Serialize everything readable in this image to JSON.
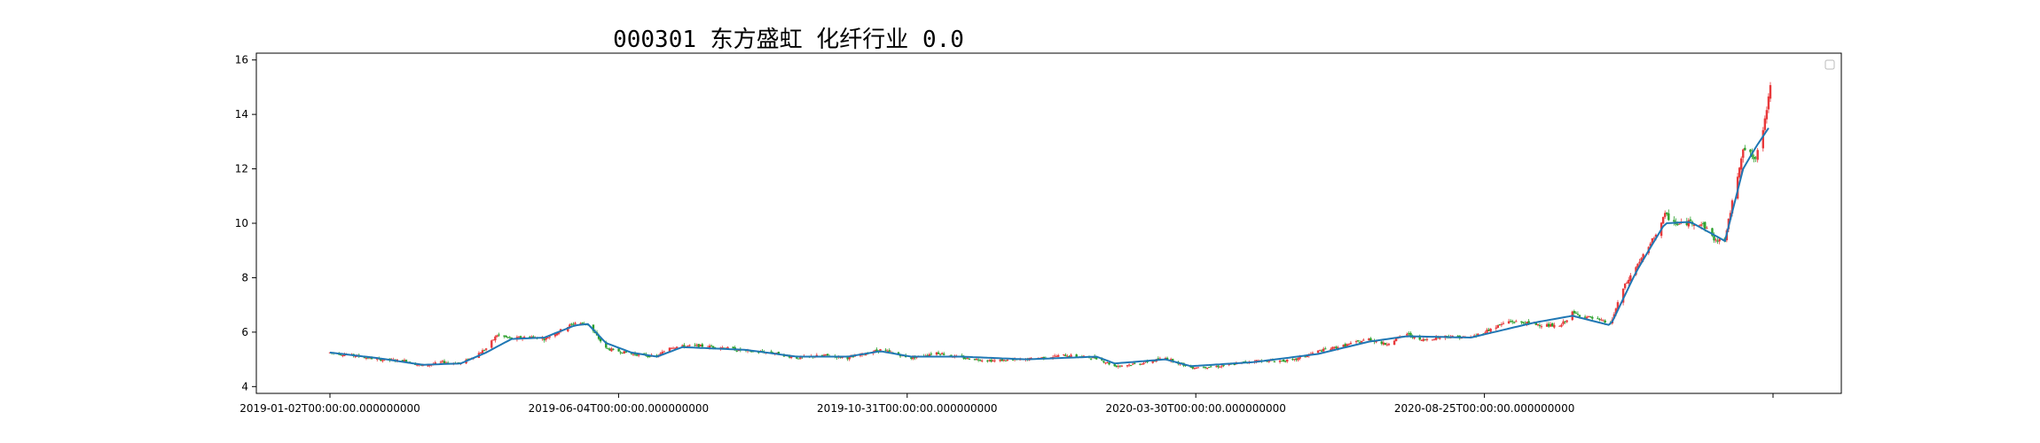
{
  "chart_data": {
    "type": "candlestick",
    "title": "000301 东方盛虹 化纤行业 0.0",
    "xlabel": "",
    "ylabel": "",
    "ylim": [
      3.75,
      16.25
    ],
    "yticks": [
      4,
      6,
      8,
      10,
      12,
      14,
      16
    ],
    "x_start": "2019-01-02",
    "x_end": "2021-03-05",
    "xtick_labels": [
      "2019-01-02T00:00:00.000000000",
      "2019-06-04T00:00:00.000000000",
      "2019-10-31T00:00:00.000000000",
      "2020-03-30T00:00:00.000000000",
      "2020-08-25T00:00:00.000000000",
      ""
    ],
    "series": [
      {
        "kind": "close",
        "points": [
          [
            "2019-01-02",
            5.25
          ],
          [
            "2019-01-14",
            5.15
          ],
          [
            "2019-01-28",
            5.0
          ],
          [
            "2019-02-12",
            4.95
          ],
          [
            "2019-02-22",
            4.75
          ],
          [
            "2019-03-05",
            4.9
          ],
          [
            "2019-03-15",
            4.85
          ],
          [
            "2019-03-22",
            5.1
          ],
          [
            "2019-03-29",
            5.4
          ],
          [
            "2019-04-04",
            5.9
          ],
          [
            "2019-04-12",
            5.75
          ],
          [
            "2019-04-22",
            5.85
          ],
          [
            "2019-04-30",
            5.75
          ],
          [
            "2019-05-10",
            6.1
          ],
          [
            "2019-05-17",
            6.35
          ],
          [
            "2019-05-24",
            6.3
          ],
          [
            "2019-06-03",
            5.4
          ],
          [
            "2019-06-17",
            5.2
          ],
          [
            "2019-07-01",
            5.1
          ],
          [
            "2019-07-08",
            5.45
          ],
          [
            "2019-07-22",
            5.5
          ],
          [
            "2019-08-05",
            5.45
          ],
          [
            "2019-08-19",
            5.3
          ],
          [
            "2019-09-02",
            5.25
          ],
          [
            "2019-09-16",
            5.05
          ],
          [
            "2019-10-01",
            5.15
          ],
          [
            "2019-10-14",
            5.05
          ],
          [
            "2019-11-01",
            5.35
          ],
          [
            "2019-11-18",
            5.05
          ],
          [
            "2019-12-02",
            5.25
          ],
          [
            "2019-12-16",
            5.05
          ],
          [
            "2020-01-02",
            4.95
          ],
          [
            "2020-01-20",
            5.0
          ],
          [
            "2020-02-10",
            5.15
          ],
          [
            "2020-02-28",
            5.05
          ],
          [
            "2020-03-09",
            4.75
          ],
          [
            "2020-03-23",
            4.85
          ],
          [
            "2020-04-06",
            5.05
          ],
          [
            "2020-04-20",
            4.7
          ],
          [
            "2020-05-06",
            4.75
          ],
          [
            "2020-05-25",
            4.95
          ],
          [
            "2020-06-15",
            4.95
          ],
          [
            "2020-06-29",
            5.3
          ],
          [
            "2020-07-13",
            5.5
          ],
          [
            "2020-07-27",
            5.75
          ],
          [
            "2020-08-05",
            5.55
          ],
          [
            "2020-08-17",
            5.95
          ],
          [
            "2020-08-24",
            5.7
          ],
          [
            "2020-09-07",
            5.85
          ],
          [
            "2020-09-21",
            5.8
          ],
          [
            "2020-10-12",
            6.4
          ],
          [
            "2020-10-26",
            6.3
          ],
          [
            "2020-11-09",
            6.2
          ],
          [
            "2020-11-16",
            6.7
          ],
          [
            "2020-11-30",
            6.45
          ],
          [
            "2020-12-07",
            6.3
          ],
          [
            "2020-12-14",
            7.6
          ],
          [
            "2020-12-21",
            8.4
          ],
          [
            "2020-12-28",
            9.1
          ],
          [
            "2021-01-06",
            10.3
          ],
          [
            "2021-01-13",
            9.95
          ],
          [
            "2021-01-20",
            10.05
          ],
          [
            "2021-01-27",
            9.95
          ],
          [
            "2021-02-03",
            9.35
          ],
          [
            "2021-02-08",
            9.4
          ],
          [
            "2021-02-18",
            12.8
          ],
          [
            "2021-02-25",
            12.3
          ],
          [
            "2021-03-02",
            13.8
          ],
          [
            "2021-03-05",
            15.2
          ]
        ]
      },
      {
        "kind": "moving-average",
        "color": "#1f77b4",
        "points": [
          [
            "2019-01-02",
            5.25
          ],
          [
            "2019-01-28",
            5.05
          ],
          [
            "2019-02-22",
            4.8
          ],
          [
            "2019-03-15",
            4.85
          ],
          [
            "2019-03-29",
            5.25
          ],
          [
            "2019-04-12",
            5.75
          ],
          [
            "2019-04-30",
            5.8
          ],
          [
            "2019-05-17",
            6.25
          ],
          [
            "2019-05-24",
            6.3
          ],
          [
            "2019-06-03",
            5.6
          ],
          [
            "2019-06-17",
            5.25
          ],
          [
            "2019-07-01",
            5.1
          ],
          [
            "2019-07-15",
            5.45
          ],
          [
            "2019-08-19",
            5.35
          ],
          [
            "2019-09-16",
            5.1
          ],
          [
            "2019-10-14",
            5.1
          ],
          [
            "2019-11-01",
            5.3
          ],
          [
            "2019-11-18",
            5.1
          ],
          [
            "2019-12-16",
            5.1
          ],
          [
            "2020-01-20",
            5.0
          ],
          [
            "2020-02-28",
            5.1
          ],
          [
            "2020-03-09",
            4.85
          ],
          [
            "2020-04-06",
            5.0
          ],
          [
            "2020-04-20",
            4.75
          ],
          [
            "2020-05-25",
            4.9
          ],
          [
            "2020-06-29",
            5.2
          ],
          [
            "2020-07-27",
            5.65
          ],
          [
            "2020-08-17",
            5.85
          ],
          [
            "2020-09-21",
            5.8
          ],
          [
            "2020-10-26",
            6.35
          ],
          [
            "2020-11-16",
            6.6
          ],
          [
            "2020-12-07",
            6.25
          ],
          [
            "2020-12-21",
            8.2
          ],
          [
            "2020-12-28",
            9.0
          ],
          [
            "2021-01-06",
            10.0
          ],
          [
            "2021-01-20",
            10.05
          ],
          [
            "2021-02-08",
            9.35
          ],
          [
            "2021-02-18",
            12.0
          ],
          [
            "2021-02-25",
            12.8
          ],
          [
            "2021-03-05",
            13.6
          ]
        ]
      }
    ],
    "grid": false,
    "legend": "top-right",
    "colors": {
      "up": "#e8393b",
      "down": "#2ca02c",
      "ma": "#1f77b4",
      "axis": "#000000"
    }
  }
}
